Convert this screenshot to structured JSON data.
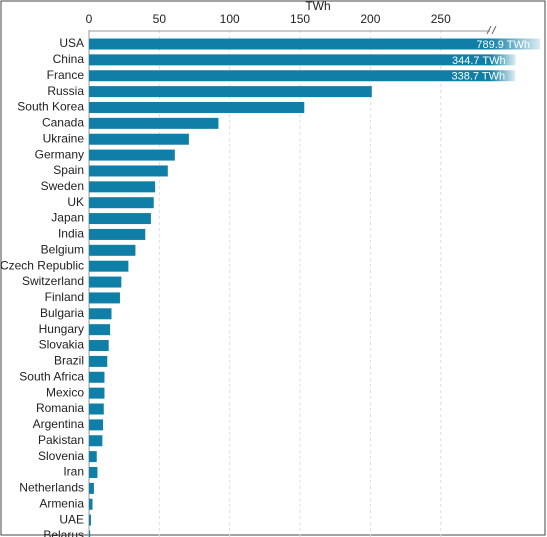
{
  "chart_data": {
    "type": "hbar",
    "x_label": "TWh",
    "categories": [
      "USA",
      "China",
      "France",
      "Russia",
      "South Korea",
      "Canada",
      "Ukraine",
      "Germany",
      "Spain",
      "Sweden",
      "UK",
      "Japan",
      "India",
      "Belgium",
      "Czech Republic",
      "Switzerland",
      "Finland",
      "Bulgaria",
      "Hungary",
      "Slovakia",
      "Brazil",
      "South Africa",
      "Mexico",
      "Romania",
      "Argentina",
      "Pakistan",
      "Slovenia",
      "Iran",
      "Netherlands",
      "Armenia",
      "UAE",
      "Belarus"
    ],
    "values": [
      789.9,
      344.7,
      338.7,
      201,
      153,
      92,
      71,
      61,
      56,
      47,
      46,
      44,
      40,
      33,
      28,
      23,
      22,
      16,
      15,
      14,
      13,
      11,
      11,
      10.5,
      10,
      9.5,
      5.5,
      6,
      3.5,
      2.5,
      1.4,
      0.8
    ],
    "value_labels": [
      "789.9 TWh",
      "344.7 TWh",
      "338.7 TWh",
      null,
      null,
      null,
      null,
      null,
      null,
      null,
      null,
      null,
      null,
      null,
      null,
      null,
      null,
      null,
      null,
      null,
      null,
      null,
      null,
      null,
      null,
      null,
      null,
      null,
      null,
      null,
      null,
      null
    ],
    "color": "#0f7fa7",
    "xlim": [
      0,
      285
    ],
    "xticks": [
      0,
      50,
      100,
      150,
      200,
      250
    ],
    "grid": true,
    "axis_break": true
  }
}
